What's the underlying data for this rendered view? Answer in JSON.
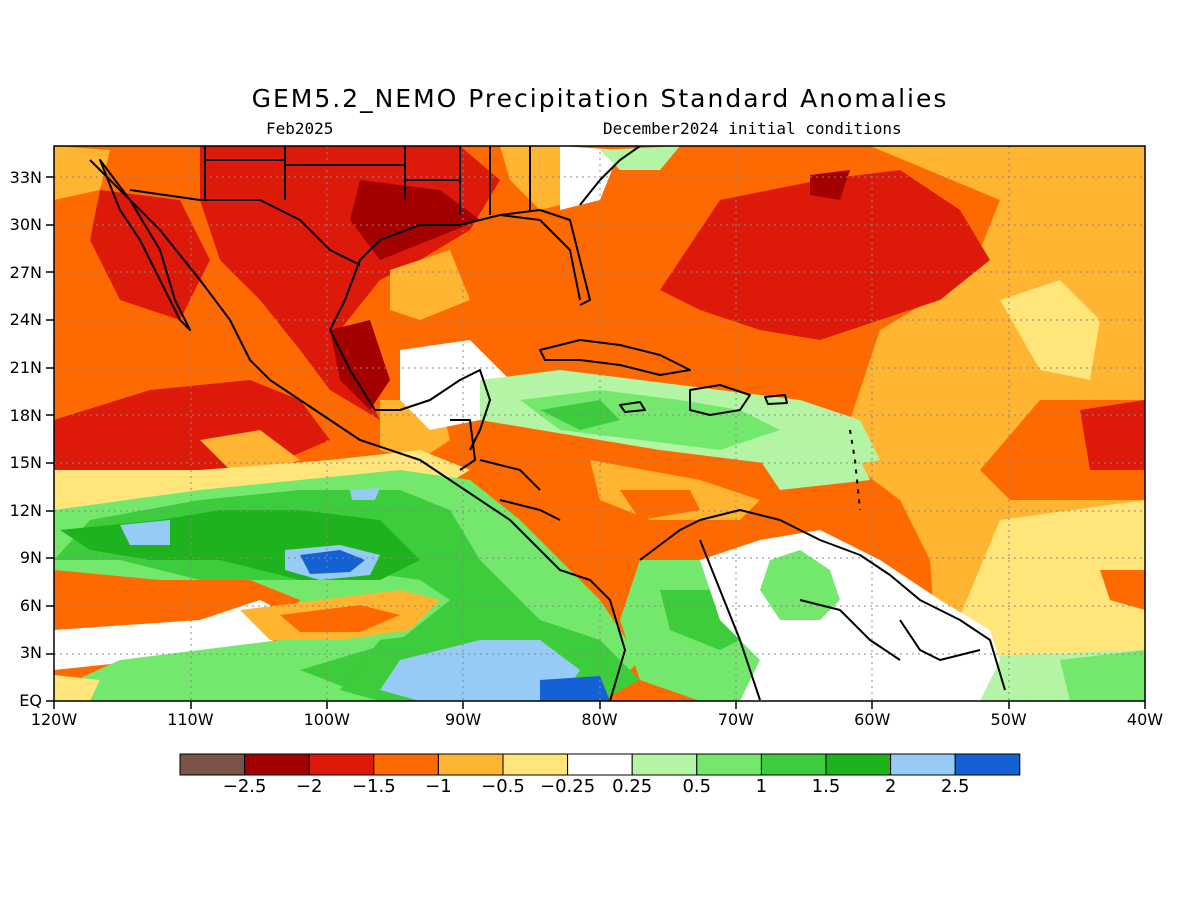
{
  "title": "GEM5.2_NEMO Precipitation Standard Anomalies",
  "valid_month": "Feb2025",
  "init_conditions": "December2024 initial conditions",
  "map": {
    "lon_range": [
      -120,
      -40
    ],
    "lat_range": [
      0,
      35
    ],
    "y_ticks": [
      {
        "lat": 33,
        "label": "33N"
      },
      {
        "lat": 30,
        "label": "30N"
      },
      {
        "lat": 27,
        "label": "27N"
      },
      {
        "lat": 24,
        "label": "24N"
      },
      {
        "lat": 21,
        "label": "21N"
      },
      {
        "lat": 18,
        "label": "18N"
      },
      {
        "lat": 15,
        "label": "15N"
      },
      {
        "lat": 12,
        "label": "12N"
      },
      {
        "lat": 9,
        "label": "9N"
      },
      {
        "lat": 6,
        "label": "6N"
      },
      {
        "lat": 3,
        "label": "3N"
      },
      {
        "lat": 0,
        "label": "EQ"
      }
    ],
    "x_ticks": [
      {
        "lon": -120,
        "label": "120W"
      },
      {
        "lon": -110,
        "label": "110W"
      },
      {
        "lon": -100,
        "label": "100W"
      },
      {
        "lon": -90,
        "label": "90W"
      },
      {
        "lon": -80,
        "label": "80W"
      },
      {
        "lon": -70,
        "label": "70W"
      },
      {
        "lon": -60,
        "label": "60W"
      },
      {
        "lon": -50,
        "label": "50W"
      },
      {
        "lon": -40,
        "label": "40W"
      }
    ],
    "grid": true,
    "grid_style": "dotted"
  },
  "colorbar": {
    "colors": [
      "#7a5446",
      "#a30000",
      "#dd1a0a",
      "#ff6a00",
      "#ffb531",
      "#ffe57a",
      "#ffffff",
      "#b4f5a5",
      "#74e86d",
      "#3ccc3c",
      "#1eb31e",
      "#96cbf5",
      "#1361d4"
    ],
    "labels": [
      "-2.5",
      "-2",
      "-1.5",
      "-1",
      "-0.5",
      "-0.25",
      "0.25",
      "0.5",
      "1",
      "1.5",
      "2",
      "2.5"
    ]
  }
}
